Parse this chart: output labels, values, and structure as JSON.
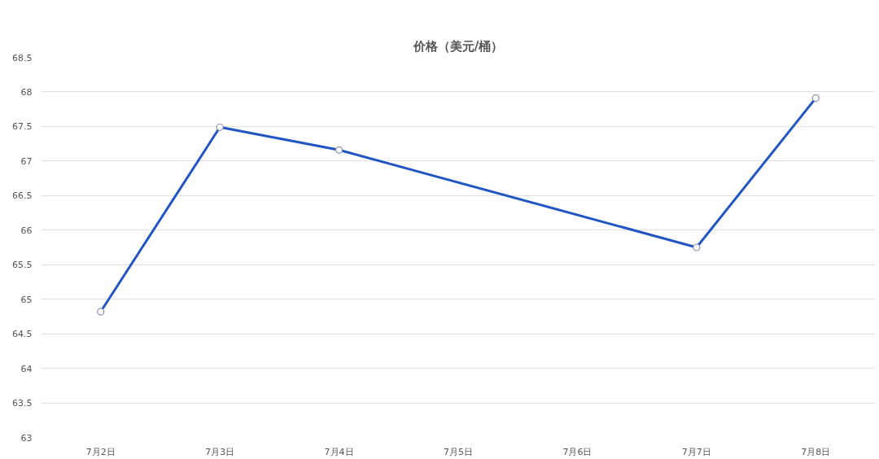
{
  "chart_data": {
    "type": "line",
    "title": "价格（美元/桶）",
    "categories": [
      "7月2日",
      "7月3日",
      "7月4日",
      "7月5日",
      "7月6日",
      "7月7日",
      "7月8日"
    ],
    "series": [
      {
        "color": "#2255c4",
        "x": [
          "7月2日",
          "7月3日",
          "7月4日",
          "7月7日",
          "7月8日"
        ],
        "values": [
          64.82,
          67.49,
          67.16,
          65.75,
          67.91
        ]
      }
    ],
    "ylim": [
      63,
      68.5
    ],
    "yticks": [
      63,
      63.5,
      64,
      64.5,
      65,
      65.5,
      66,
      66.5,
      67,
      67.5,
      68,
      68.5
    ],
    "grid": "y",
    "marker": "circle",
    "line_style": "solid"
  }
}
